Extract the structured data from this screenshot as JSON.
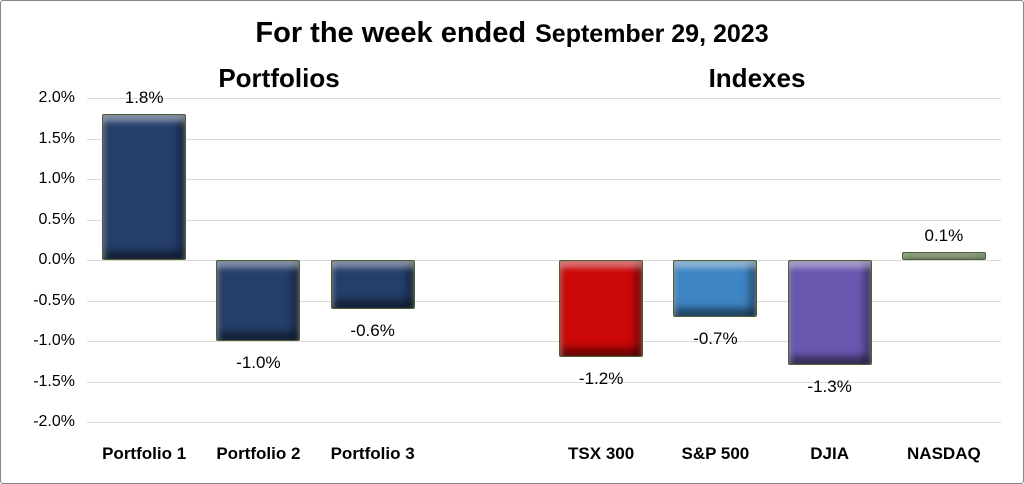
{
  "chart_data": {
    "type": "bar",
    "title_prefix": "For the week ended",
    "title_date": "September 29, 2023",
    "group_labels": [
      "Portfolios",
      "Indexes"
    ],
    "categories": [
      "Portfolio 1",
      "Portfolio 2",
      "Portfolio 3",
      "TSX 300",
      "S&P 500",
      "DJIA",
      "NASDAQ"
    ],
    "values": [
      1.8,
      -1.0,
      -0.6,
      -1.2,
      -0.7,
      -1.3,
      0.1
    ],
    "value_labels": [
      "1.8%",
      "-1.0%",
      "-0.6%",
      "-1.2%",
      "-0.7%",
      "-1.3%",
      "0.1%"
    ],
    "bar_colors": [
      "#253e6a",
      "#253e6a",
      "#253e6a",
      "#cc0808",
      "#3e85c3",
      "#6a57b0",
      "#5a9e32"
    ],
    "ylim": [
      -2.0,
      2.0
    ],
    "yticks": [
      {
        "value": 2.0,
        "label": "2.0%"
      },
      {
        "value": 1.5,
        "label": "1.5%"
      },
      {
        "value": 1.0,
        "label": "1.0%"
      },
      {
        "value": 0.5,
        "label": "0.5%"
      },
      {
        "value": 0.0,
        "label": "0.0%"
      },
      {
        "value": -0.5,
        "label": "-0.5%"
      },
      {
        "value": -1.0,
        "label": "-1.0%"
      },
      {
        "value": -1.5,
        "label": "-1.5%"
      },
      {
        "value": -2.0,
        "label": "-2.0%"
      }
    ],
    "grid": "horizontal",
    "legend": "none",
    "slot_layout": {
      "slot_count": 8,
      "category_slots": [
        0,
        1,
        2,
        4,
        5,
        6,
        7
      ]
    }
  },
  "colors": {
    "gridline": "#d9d9d9",
    "bar_outline": "#4e5e30",
    "frame_border": "#898989",
    "text": "#000000",
    "background": "#ffffff"
  }
}
